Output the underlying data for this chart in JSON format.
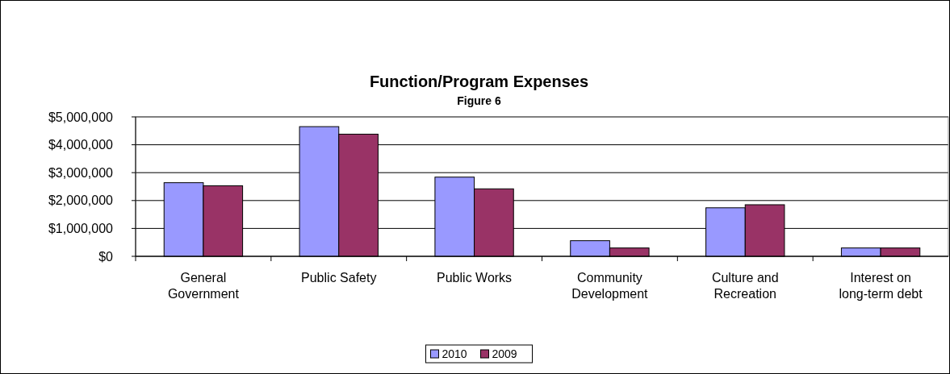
{
  "chart_data": {
    "type": "bar",
    "title": "Function/Program Expenses",
    "subtitle": "Figure 6",
    "categories": [
      "General Government",
      "Public Safety",
      "Public Works",
      "Community Development",
      "Culture and Recreation",
      "Interest on long-term debt"
    ],
    "series": [
      {
        "name": "2010",
        "color": "#9999ff",
        "values": [
          2640000,
          4650000,
          2840000,
          560000,
          1740000,
          300000
        ]
      },
      {
        "name": "2009",
        "color": "#993366",
        "values": [
          2530000,
          4380000,
          2420000,
          300000,
          1850000,
          300000
        ]
      }
    ],
    "ylim": [
      0,
      5000000
    ],
    "yticks": [
      {
        "value": 0,
        "label": "$0"
      },
      {
        "value": 1000000,
        "label": "$1,000,000"
      },
      {
        "value": 2000000,
        "label": "$2,000,000"
      },
      {
        "value": 3000000,
        "label": "$3,000,000"
      },
      {
        "value": 4000000,
        "label": "$4,000,000"
      },
      {
        "value": 5000000,
        "label": "$5,000,000"
      }
    ],
    "grid": "y",
    "legend": "bottom"
  }
}
